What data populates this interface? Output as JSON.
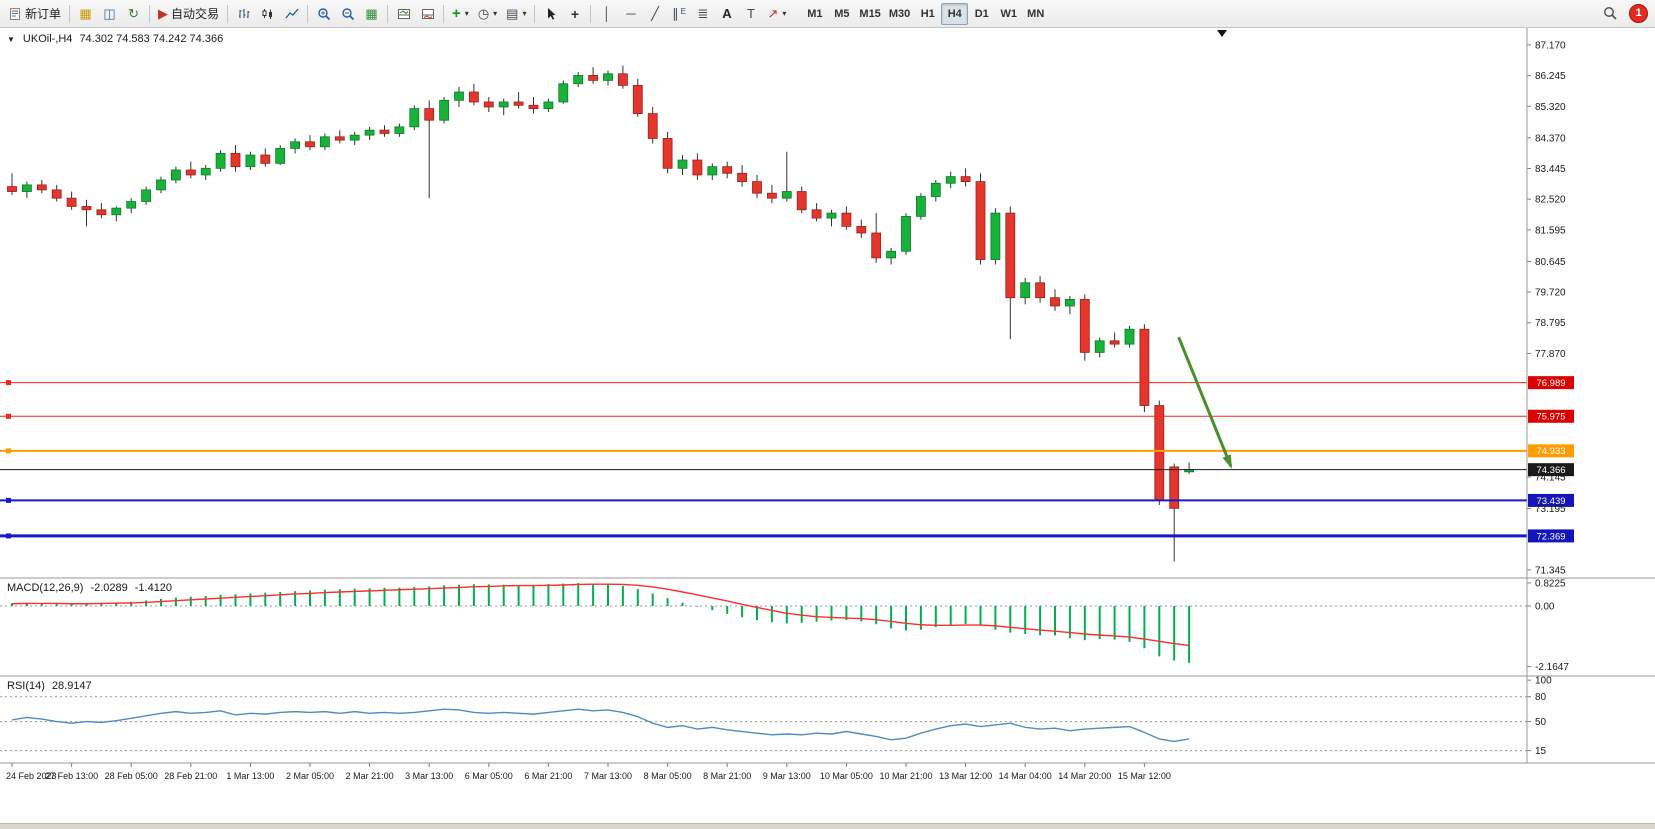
{
  "toolbar": {
    "new_order": "新订单",
    "auto_trading": "自动交易",
    "text_tool": "A",
    "label_tool": "T",
    "channel_suffix": "E",
    "timeframes": [
      "M1",
      "M5",
      "M15",
      "M30",
      "H1",
      "H4",
      "D1",
      "W1",
      "MN"
    ],
    "active_timeframe": "H4",
    "notification_count": "1"
  },
  "icons": {
    "collapse_triangle": "▼",
    "new_chart": "▦",
    "profiles": "◫",
    "refresh": "↻",
    "autotrade_play": "▶",
    "tile_windows": "▦",
    "add_indicator": "+",
    "caret": "▾",
    "clock": "◷",
    "template": "▤",
    "crosshair": "+",
    "vertical_line": "│",
    "horizontal_line": "─",
    "trendline": "╱",
    "channel": "∥",
    "fibonacci": "≣",
    "arrow_tool": "↗"
  },
  "chart_data": [
    {
      "type": "candlestick",
      "symbol": "UKOil-,H4",
      "ohlc_display": "74.302 74.583 74.242 74.366",
      "up_color": "#18b23b",
      "up_border": "#0c7c26",
      "down_color": "#e3362c",
      "down_border": "#9e1f17",
      "wick_color": "#333333",
      "ylim": [
        71.1,
        87.68
      ],
      "y_ticks": [
        "87.170",
        "86.245",
        "85.320",
        "84.370",
        "83.445",
        "82.520",
        "81.595",
        "80.645",
        "79.720",
        "78.795",
        "77.870",
        "74.145",
        "73.195",
        "71.345"
      ],
      "x_label_step": 4,
      "x_labels": [
        "24 Feb 2023",
        "27 Feb 13:00",
        "28 Feb 05:00",
        "28 Feb 21:00",
        "1 Mar 13:00",
        "2 Mar 05:00",
        "2 Mar 21:00",
        "3 Mar 13:00",
        "6 Mar 05:00",
        "6 Mar 21:00",
        "7 Mar 13:00",
        "8 Mar 05:00",
        "8 Mar 21:00",
        "9 Mar 13:00",
        "10 Mar 05:00",
        "10 Mar 21:00",
        "13 Mar 12:00",
        "14 Mar 04:00",
        "14 Mar 20:00",
        "15 Mar 12:00"
      ],
      "hlines": [
        {
          "value": 76.989,
          "label": "76.989",
          "color": "#ff1e1e",
          "badge_bg": "#dd0000",
          "width": 1
        },
        {
          "value": 75.975,
          "label": "75.975",
          "color": "#ff1e1e",
          "badge_bg": "#dd0000",
          "width": 1
        },
        {
          "value": 74.933,
          "label": "74.933",
          "color": "#ff9c00",
          "badge_bg": "#ff9c00",
          "width": 2
        },
        {
          "value": 74.366,
          "label": "74.366",
          "color": "#1a1a1a",
          "badge_bg": "#1a1a1a",
          "width": 1,
          "is_price_line": true
        },
        {
          "value": 73.439,
          "label": "73.439",
          "color": "#1717cf",
          "badge_bg": "#1414bb",
          "width": 2
        },
        {
          "value": 72.369,
          "label": "72.369",
          "color": "#1717cf",
          "badge_bg": "#1414bb",
          "width": 3
        }
      ],
      "arrow": {
        "bar1": 78.3,
        "price1": 78.36,
        "bar2": 81.8,
        "price2": 74.47,
        "color": "#4a8f29"
      },
      "ohlc": [
        [
          82.9,
          83.3,
          82.65,
          82.75
        ],
        [
          82.75,
          83.05,
          82.55,
          82.95
        ],
        [
          82.95,
          83.1,
          82.7,
          82.8
        ],
        [
          82.8,
          82.95,
          82.45,
          82.55
        ],
        [
          82.55,
          82.75,
          82.2,
          82.3
        ],
        [
          82.3,
          82.5,
          81.7,
          82.2
        ],
        [
          82.2,
          82.4,
          81.95,
          82.05
        ],
        [
          82.05,
          82.3,
          81.85,
          82.25
        ],
        [
          82.25,
          82.55,
          82.1,
          82.45
        ],
        [
          82.45,
          82.9,
          82.35,
          82.8
        ],
        [
          82.8,
          83.2,
          82.7,
          83.1
        ],
        [
          83.1,
          83.5,
          83.0,
          83.4
        ],
        [
          83.4,
          83.65,
          83.15,
          83.25
        ],
        [
          83.25,
          83.55,
          83.1,
          83.45
        ],
        [
          83.45,
          84.0,
          83.35,
          83.9
        ],
        [
          83.9,
          84.15,
          83.35,
          83.5
        ],
        [
          83.5,
          83.95,
          83.4,
          83.85
        ],
        [
          83.85,
          84.05,
          83.5,
          83.6
        ],
        [
          83.6,
          84.15,
          83.55,
          84.05
        ],
        [
          84.05,
          84.35,
          83.9,
          84.25
        ],
        [
          84.25,
          84.45,
          84.0,
          84.1
        ],
        [
          84.1,
          84.5,
          84.0,
          84.4
        ],
        [
          84.4,
          84.6,
          84.2,
          84.3
        ],
        [
          84.3,
          84.55,
          84.15,
          84.45
        ],
        [
          84.45,
          84.7,
          84.3,
          84.6
        ],
        [
          84.6,
          84.75,
          84.4,
          84.5
        ],
        [
          84.5,
          84.8,
          84.4,
          84.7
        ],
        [
          84.7,
          85.35,
          84.6,
          85.25
        ],
        [
          85.25,
          85.5,
          82.55,
          84.9
        ],
        [
          84.9,
          85.6,
          84.8,
          85.5
        ],
        [
          85.5,
          85.9,
          85.3,
          85.75
        ],
        [
          85.75,
          86.0,
          85.35,
          85.45
        ],
        [
          85.45,
          85.6,
          85.15,
          85.3
        ],
        [
          85.3,
          85.55,
          85.05,
          85.45
        ],
        [
          85.45,
          85.75,
          85.25,
          85.35
        ],
        [
          85.35,
          85.6,
          85.1,
          85.25
        ],
        [
          85.25,
          85.55,
          85.15,
          85.45
        ],
        [
          85.45,
          86.1,
          85.4,
          86.0
        ],
        [
          86.0,
          86.35,
          85.9,
          86.25
        ],
        [
          86.25,
          86.5,
          86.0,
          86.1
        ],
        [
          86.1,
          86.4,
          85.95,
          86.3
        ],
        [
          86.3,
          86.55,
          85.85,
          85.95
        ],
        [
          85.95,
          86.15,
          85.0,
          85.1
        ],
        [
          85.1,
          85.3,
          84.2,
          84.35
        ],
        [
          84.35,
          84.55,
          83.3,
          83.45
        ],
        [
          83.45,
          83.85,
          83.25,
          83.7
        ],
        [
          83.7,
          83.9,
          83.1,
          83.25
        ],
        [
          83.25,
          83.6,
          83.1,
          83.5
        ],
        [
          83.5,
          83.65,
          83.15,
          83.3
        ],
        [
          83.3,
          83.55,
          82.9,
          83.05
        ],
        [
          83.05,
          83.25,
          82.55,
          82.7
        ],
        [
          82.7,
          82.95,
          82.4,
          82.55
        ],
        [
          82.55,
          83.95,
          82.45,
          82.75
        ],
        [
          82.75,
          82.9,
          82.1,
          82.2
        ],
        [
          82.2,
          82.4,
          81.85,
          81.95
        ],
        [
          81.95,
          82.2,
          81.7,
          82.1
        ],
        [
          82.1,
          82.3,
          81.6,
          81.7
        ],
        [
          81.7,
          81.9,
          81.35,
          81.5
        ],
        [
          81.5,
          82.1,
          80.6,
          80.75
        ],
        [
          80.75,
          81.05,
          80.55,
          80.95
        ],
        [
          80.95,
          82.1,
          80.85,
          82.0
        ],
        [
          82.0,
          82.7,
          81.9,
          82.6
        ],
        [
          82.6,
          83.1,
          82.45,
          83.0
        ],
        [
          83.0,
          83.35,
          82.85,
          83.2
        ],
        [
          83.2,
          83.45,
          82.9,
          83.05
        ],
        [
          83.05,
          83.3,
          80.55,
          80.7
        ],
        [
          80.7,
          82.25,
          80.55,
          82.1
        ],
        [
          82.1,
          82.3,
          78.3,
          79.55
        ],
        [
          79.55,
          80.15,
          79.35,
          80.0
        ],
        [
          80.0,
          80.2,
          79.4,
          79.55
        ],
        [
          79.55,
          79.8,
          79.15,
          79.3
        ],
        [
          79.3,
          79.6,
          79.05,
          79.5
        ],
        [
          79.5,
          79.65,
          77.65,
          77.9
        ],
        [
          77.9,
          78.35,
          77.75,
          78.25
        ],
        [
          78.25,
          78.5,
          78.05,
          78.15
        ],
        [
          78.15,
          78.7,
          78.05,
          78.6
        ],
        [
          78.6,
          78.75,
          76.1,
          76.3
        ],
        [
          76.3,
          76.45,
          73.3,
          73.45
        ],
        [
          74.45,
          74.55,
          71.6,
          73.2
        ],
        [
          74.3,
          74.58,
          74.24,
          74.37
        ]
      ]
    },
    {
      "type": "macd",
      "name": "MACD(12,26,9)",
      "value_main": "-2.0289",
      "value_signal": "-1.4120",
      "histogram_color": "#00b050",
      "signal_color": "#ff2d2d",
      "ylim": [
        -2.5,
        1.0
      ],
      "y_ticks": [
        "0.8225",
        "0.00",
        "-2.1647"
      ],
      "histogram": [
        0.1,
        0.12,
        0.1,
        0.08,
        0.06,
        0.08,
        0.1,
        0.12,
        0.15,
        0.2,
        0.25,
        0.3,
        0.33,
        0.36,
        0.4,
        0.42,
        0.45,
        0.48,
        0.5,
        0.53,
        0.55,
        0.58,
        0.6,
        0.62,
        0.63,
        0.65,
        0.66,
        0.68,
        0.7,
        0.74,
        0.76,
        0.78,
        0.77,
        0.76,
        0.75,
        0.76,
        0.78,
        0.8,
        0.82,
        0.8,
        0.78,
        0.72,
        0.6,
        0.45,
        0.28,
        0.12,
        -0.02,
        -0.15,
        -0.28,
        -0.4,
        -0.5,
        -0.58,
        -0.62,
        -0.6,
        -0.56,
        -0.52,
        -0.5,
        -0.55,
        -0.65,
        -0.8,
        -0.88,
        -0.85,
        -0.75,
        -0.68,
        -0.64,
        -0.7,
        -0.85,
        -0.95,
        -1.0,
        -1.05,
        -1.05,
        -1.15,
        -1.22,
        -1.18,
        -1.2,
        -1.28,
        -1.5,
        -1.8,
        -1.95,
        -2.03
      ],
      "signal": [
        0.08,
        0.09,
        0.09,
        0.09,
        0.08,
        0.08,
        0.09,
        0.1,
        0.11,
        0.13,
        0.16,
        0.19,
        0.22,
        0.25,
        0.28,
        0.31,
        0.34,
        0.37,
        0.4,
        0.43,
        0.45,
        0.48,
        0.5,
        0.52,
        0.54,
        0.56,
        0.58,
        0.6,
        0.62,
        0.64,
        0.66,
        0.69,
        0.7,
        0.72,
        0.73,
        0.73,
        0.74,
        0.75,
        0.77,
        0.78,
        0.78,
        0.77,
        0.74,
        0.68,
        0.6,
        0.5,
        0.4,
        0.29,
        0.18,
        0.06,
        -0.05,
        -0.16,
        -0.26,
        -0.33,
        -0.38,
        -0.41,
        -0.43,
        -0.45,
        -0.49,
        -0.55,
        -0.62,
        -0.67,
        -0.69,
        -0.69,
        -0.68,
        -0.68,
        -0.71,
        -0.76,
        -0.81,
        -0.86,
        -0.9,
        -0.95,
        -1.0,
        -1.04,
        -1.07,
        -1.11,
        -1.18,
        -1.26,
        -1.34,
        -1.41
      ]
    },
    {
      "type": "rsi",
      "name": "RSI(14)",
      "value": "28.9147",
      "line_color": "#4e8bc4",
      "ylim": [
        0,
        105
      ],
      "y_ticks": [
        "100",
        "80",
        "50",
        "15"
      ],
      "levels": [
        80,
        50,
        15
      ],
      "values": [
        52,
        55,
        53,
        50,
        48,
        50,
        49,
        51,
        54,
        57,
        60,
        62,
        60,
        61,
        63,
        58,
        60,
        59,
        61,
        62,
        61,
        62,
        60,
        62,
        60,
        61,
        60,
        61,
        63,
        65,
        64,
        61,
        60,
        61,
        60,
        59,
        61,
        63,
        65,
        63,
        64,
        61,
        56,
        48,
        43,
        45,
        41,
        43,
        40,
        38,
        36,
        34,
        35,
        34,
        36,
        35,
        38,
        35,
        32,
        28,
        30,
        36,
        41,
        45,
        47,
        44,
        46,
        48,
        43,
        41,
        42,
        39,
        41,
        42,
        43,
        44,
        37,
        29,
        26,
        29
      ]
    }
  ]
}
